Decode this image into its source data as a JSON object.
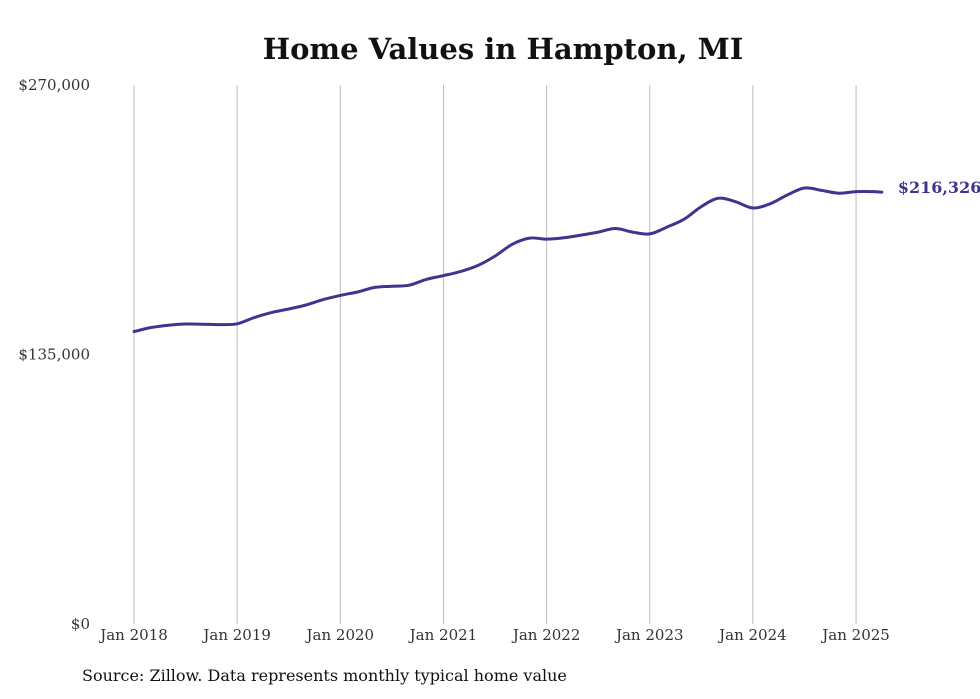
{
  "chart_data": {
    "type": "line",
    "title": "Home Values in Hampton, MI",
    "xlabel": "",
    "ylabel": "",
    "ylim": [
      0,
      270000
    ],
    "y_ticks": [
      "$0",
      "$135,000",
      "$270,000"
    ],
    "x_ticks": [
      "Jan 2018",
      "Jan 2019",
      "Jan 2020",
      "Jan 2021",
      "Jan 2022",
      "Jan 2023",
      "Jan 2024",
      "Jan 2025"
    ],
    "grid": "vertical lines at January of each year",
    "end_label": "$216,326",
    "series": [
      {
        "color": "#3d3590",
        "points": [
          [
            "2018-01",
            146500
          ],
          [
            "2018-03",
            148500
          ],
          [
            "2018-05",
            149700
          ],
          [
            "2018-07",
            150300
          ],
          [
            "2018-09",
            150200
          ],
          [
            "2018-11",
            150000
          ],
          [
            "2019-01",
            150400
          ],
          [
            "2019-03",
            153500
          ],
          [
            "2019-05",
            156000
          ],
          [
            "2019-07",
            157800
          ],
          [
            "2019-09",
            159800
          ],
          [
            "2019-11",
            162500
          ],
          [
            "2020-01",
            164600
          ],
          [
            "2020-03",
            166300
          ],
          [
            "2020-05",
            168600
          ],
          [
            "2020-07",
            169200
          ],
          [
            "2020-09",
            169700
          ],
          [
            "2020-11",
            172600
          ],
          [
            "2021-01",
            174500
          ],
          [
            "2021-03",
            176600
          ],
          [
            "2021-05",
            179600
          ],
          [
            "2021-07",
            184300
          ],
          [
            "2021-09",
            190200
          ],
          [
            "2021-11",
            193300
          ],
          [
            "2022-01",
            192800
          ],
          [
            "2022-03",
            193500
          ],
          [
            "2022-05",
            194800
          ],
          [
            "2022-07",
            196300
          ],
          [
            "2022-09",
            198100
          ],
          [
            "2022-11",
            196300
          ],
          [
            "2023-01",
            195400
          ],
          [
            "2023-03",
            198800
          ],
          [
            "2023-05",
            202800
          ],
          [
            "2023-07",
            209100
          ],
          [
            "2023-09",
            213300
          ],
          [
            "2023-11",
            211500
          ],
          [
            "2024-01",
            208400
          ],
          [
            "2024-03",
            210500
          ],
          [
            "2024-05",
            214900
          ],
          [
            "2024-07",
            218400
          ],
          [
            "2024-09",
            217200
          ],
          [
            "2024-11",
            215800
          ],
          [
            "2025-01",
            216600
          ],
          [
            "2025-03",
            216600
          ],
          [
            "2025-04",
            216326
          ]
        ]
      }
    ]
  },
  "source_note": "Source: Zillow. Data represents monthly typical home value"
}
